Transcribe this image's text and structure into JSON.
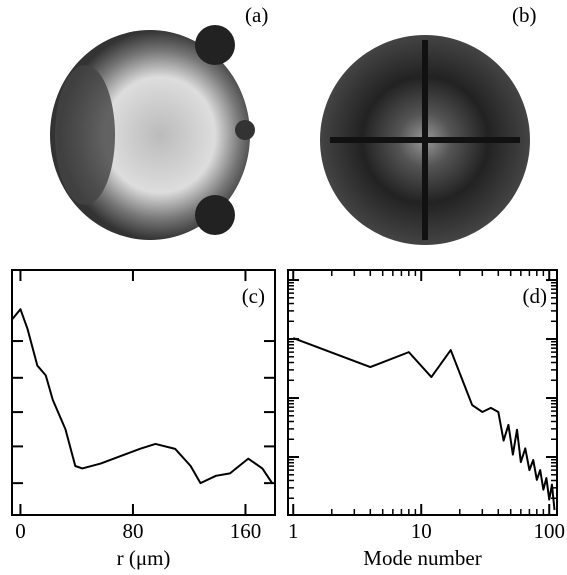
{
  "panels": {
    "a": "(a)",
    "b": "(b)"
  },
  "chart_data": [
    {
      "type": "line",
      "panel_label": "(c)",
      "xlabel": "r (μm)",
      "x": [
        -5.7,
        0,
        5,
        12,
        18,
        23,
        32,
        39,
        44,
        57,
        71,
        85,
        96,
        110,
        121,
        128,
        139,
        149,
        162,
        172,
        179
      ],
      "series": [
        {
          "color": "#000000",
          "values": [
            0.8,
            0.84,
            0.76,
            0.61,
            0.57,
            0.47,
            0.35,
            0.2,
            0.19,
            0.21,
            0.24,
            0.27,
            0.29,
            0.27,
            0.2,
            0.13,
            0.16,
            0.17,
            0.23,
            0.19,
            0.13
          ]
        }
      ],
      "xlim": [
        -6,
        181
      ],
      "ylim": [
        0,
        1
      ],
      "xticks": [
        0,
        80,
        160
      ],
      "yticks": [
        0.13,
        0.28,
        0.42,
        0.56,
        0.71
      ]
    },
    {
      "type": "line",
      "panel_label": "(d)",
      "xlabel": "Mode number",
      "xscale": "log",
      "yscale": "log",
      "x": [
        1,
        4,
        8,
        12,
        17,
        25,
        30,
        35,
        40,
        44,
        48,
        52,
        56,
        60,
        65,
        70,
        75,
        80,
        85,
        90,
        95,
        100,
        105,
        110
      ],
      "series": [
        {
          "color": "#000000",
          "values": [
            0.104,
            0.0335,
            0.06,
            0.0227,
            0.065,
            0.0076,
            0.0058,
            0.0068,
            0.0058,
            0.0019,
            0.0035,
            0.0011,
            0.0029,
            0.00082,
            0.0014,
            0.0006,
            0.00089,
            0.00041,
            0.0006,
            0.00028,
            0.00044,
            0.00019,
            0.00034,
            0.000126
          ]
        }
      ],
      "xlim": [
        0.91,
        115
      ],
      "ylim": [
        0.000104,
        1.48
      ],
      "xticks": [
        1,
        10,
        100
      ],
      "yticks": [
        0.001,
        0.01,
        0.1,
        1
      ]
    }
  ]
}
